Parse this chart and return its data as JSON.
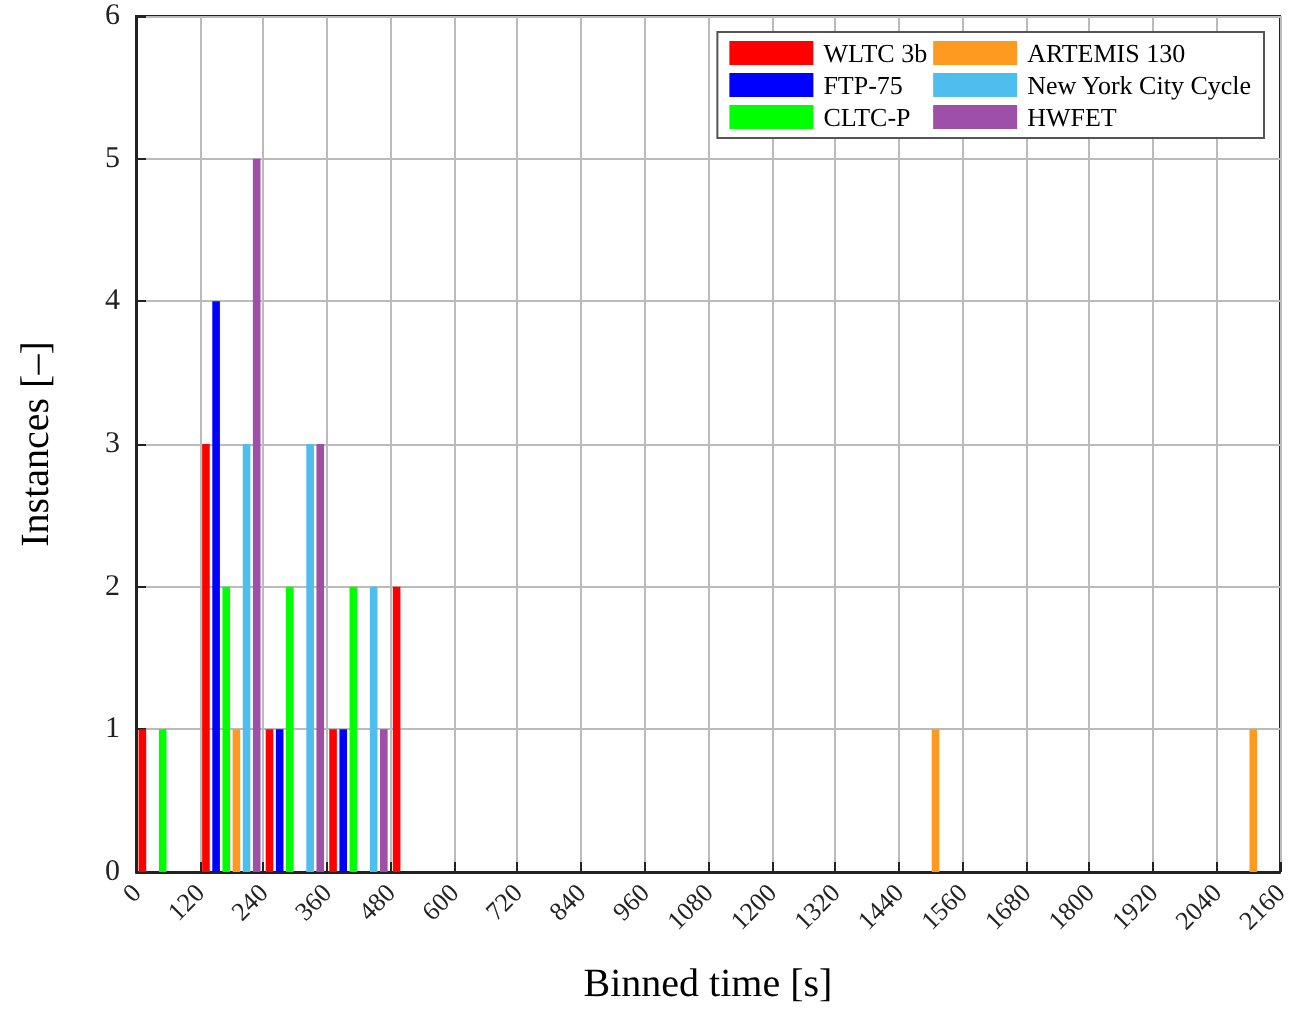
{
  "chart_data": {
    "type": "bar",
    "xlabel": "Binned time [s]",
    "ylabel": "Instances [–]",
    "x": [
      60,
      180,
      300,
      420,
      540,
      660,
      780,
      900,
      1020,
      1140,
      1260,
      1380,
      1500,
      1620,
      1740,
      1860,
      1980,
      2100
    ],
    "series": [
      {
        "name": "WLTC 3b",
        "color": "#ff0000",
        "values": [
          1,
          3,
          1,
          1,
          2,
          0,
          0,
          0,
          0,
          0,
          0,
          0,
          0,
          0,
          0,
          0,
          0,
          0
        ]
      },
      {
        "name": "FTP-75",
        "color": "#0000ff",
        "values": [
          0,
          4,
          1,
          1,
          0,
          0,
          0,
          0,
          0,
          0,
          0,
          0,
          0,
          0,
          0,
          0,
          0,
          0
        ]
      },
      {
        "name": "CLTC-P",
        "color": "#00ff00",
        "values": [
          1,
          2,
          2,
          2,
          0,
          0,
          0,
          0,
          0,
          0,
          0,
          0,
          0,
          0,
          0,
          0,
          0,
          0
        ]
      },
      {
        "name": "ARTEMIS 130",
        "color": "#ff9a20",
        "values": [
          0,
          1,
          0,
          0,
          0,
          0,
          0,
          0,
          0,
          0,
          0,
          0,
          1,
          0,
          0,
          0,
          0,
          1
        ]
      },
      {
        "name": "New York City Cycle",
        "color": "#4dbeee",
        "values": [
          0,
          3,
          3,
          2,
          0,
          0,
          0,
          0,
          0,
          0,
          0,
          0,
          0,
          0,
          0,
          0,
          0,
          0
        ]
      },
      {
        "name": "HWFET",
        "color": "#9e4fa8",
        "values": [
          0,
          5,
          3,
          1,
          0,
          0,
          0,
          0,
          0,
          0,
          0,
          0,
          0,
          0,
          0,
          0,
          0,
          0
        ]
      }
    ],
    "xlim": [
      0,
      2160
    ],
    "xticks": [
      0,
      120,
      240,
      360,
      480,
      600,
      720,
      840,
      960,
      1080,
      1200,
      1320,
      1440,
      1560,
      1680,
      1800,
      1920,
      2040,
      2160
    ],
    "ylim": [
      0,
      6
    ],
    "yticks": [
      0,
      1,
      2,
      3,
      4,
      5,
      6
    ],
    "grid": true,
    "legend": "top right"
  }
}
